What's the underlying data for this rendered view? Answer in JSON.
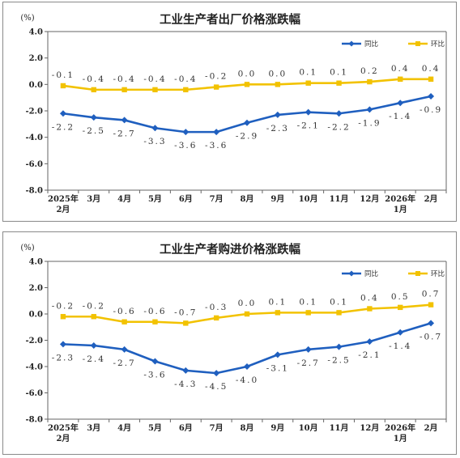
{
  "colors": {
    "series_yoy": "#1f5fbf",
    "series_mom": "#f2c200",
    "axis": "#666666",
    "grid": "#bfbfbf"
  },
  "chart_data": [
    {
      "type": "line",
      "title": "工业生产者出厂价格涨跌幅",
      "unit": "(%)",
      "categories": [
        [
          "2025年",
          "2月"
        ],
        [
          "3月"
        ],
        [
          "4月"
        ],
        [
          "5月"
        ],
        [
          "6月"
        ],
        [
          "7月"
        ],
        [
          "8月"
        ],
        [
          "9月"
        ],
        [
          "10月"
        ],
        [
          "11月"
        ],
        [
          "12月"
        ],
        [
          "2026年",
          "1月"
        ],
        [
          "2月"
        ]
      ],
      "ylim": [
        -8.0,
        4.0
      ],
      "yticks": [
        "4.0",
        "2.0",
        "0.0",
        "-2.0",
        "-4.0",
        "-6.0",
        "-8.0"
      ],
      "legend": {
        "position": "top-right"
      },
      "grid": false,
      "series": [
        {
          "name": "同比",
          "color": "#1f5fbf",
          "marker": "diamond",
          "values": [
            -2.2,
            -2.5,
            -2.7,
            -3.3,
            -3.6,
            -3.6,
            -2.9,
            -2.3,
            -2.1,
            -2.2,
            -1.9,
            -1.4,
            -0.9
          ],
          "labels": [
            "-2.2",
            "-2.5",
            "-2.7",
            "-3.3",
            "-3.6",
            "-3.6",
            "-2.9",
            "-2.3",
            "-2.1",
            "-2.2",
            "-1.9",
            "-1.4",
            "-0.9"
          ]
        },
        {
          "name": "环比",
          "color": "#f2c200",
          "marker": "square",
          "values": [
            -0.1,
            -0.4,
            -0.4,
            -0.4,
            -0.4,
            -0.2,
            0.0,
            0.0,
            0.1,
            0.1,
            0.2,
            0.4,
            0.4
          ],
          "labels": [
            "-0.1",
            "-0.4",
            "-0.4",
            "-0.4",
            "-0.4",
            "-0.2",
            "0.0",
            "0.0",
            "0.1",
            "0.1",
            "0.2",
            "0.4",
            "0.4"
          ]
        }
      ]
    },
    {
      "type": "line",
      "title": "工业生产者购进价格涨跌幅",
      "unit": "(%)",
      "categories": [
        [
          "2025年",
          "2月"
        ],
        [
          "3月"
        ],
        [
          "4月"
        ],
        [
          "5月"
        ],
        [
          "6月"
        ],
        [
          "7月"
        ],
        [
          "8月"
        ],
        [
          "9月"
        ],
        [
          "10月"
        ],
        [
          "11月"
        ],
        [
          "12月"
        ],
        [
          "2026年",
          "1月"
        ],
        [
          "2月"
        ]
      ],
      "ylim": [
        -8.0,
        4.0
      ],
      "yticks": [
        "4.0",
        "2.0",
        "0.0",
        "-2.0",
        "-4.0",
        "-6.0",
        "-8.0"
      ],
      "legend": {
        "position": "top-right"
      },
      "grid": false,
      "series": [
        {
          "name": "同比",
          "color": "#1f5fbf",
          "marker": "diamond",
          "values": [
            -2.3,
            -2.4,
            -2.7,
            -3.6,
            -4.3,
            -4.5,
            -4.0,
            -3.1,
            -2.7,
            -2.5,
            -2.1,
            -1.4,
            -0.7
          ],
          "labels": [
            "-2.3",
            "-2.4",
            "-2.7",
            "-3.6",
            "-4.3",
            "-4.5",
            "-4.0",
            "-3.1",
            "-2.7",
            "-2.5",
            "-2.1",
            "-1.4",
            "-0.7"
          ]
        },
        {
          "name": "环比",
          "color": "#f2c200",
          "marker": "square",
          "values": [
            -0.2,
            -0.2,
            -0.6,
            -0.6,
            -0.7,
            -0.3,
            0.0,
            0.1,
            0.1,
            0.1,
            0.4,
            0.5,
            0.7
          ],
          "labels": [
            "-0.2",
            "-0.2",
            "-0.6",
            "-0.6",
            "-0.7",
            "-0.3",
            "0.0",
            "0.1",
            "0.1",
            "0.1",
            "0.4",
            "0.5",
            "0.7"
          ]
        }
      ]
    }
  ]
}
